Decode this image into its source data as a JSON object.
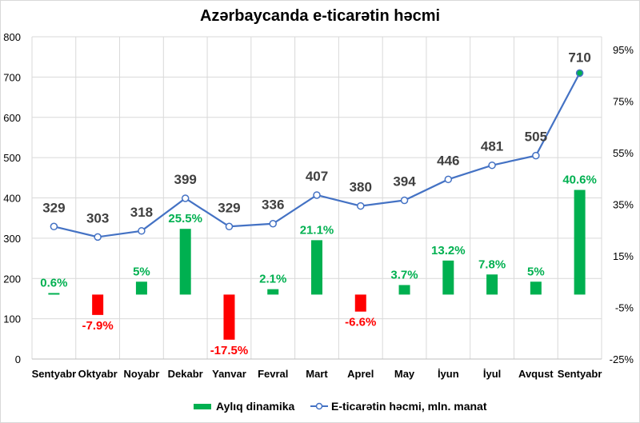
{
  "chart_data": {
    "type": "bar+line",
    "title": "Azərbaycanda e-ticarətin həcmi",
    "categories": [
      "Sentyabr",
      "Oktyabr",
      "Noyabr",
      "Dekabr",
      "Yanvar",
      "Fevral",
      "Mart",
      "Aprel",
      "May",
      "İyun",
      "İyul",
      "Avqust",
      "Sentyabr"
    ],
    "series": [
      {
        "name": "Aylıq dinamika",
        "type": "bar",
        "axis": "right",
        "values": [
          0.6,
          -7.9,
          5,
          25.5,
          -17.5,
          2.1,
          21.1,
          -6.6,
          3.7,
          13.2,
          7.8,
          5,
          40.6
        ],
        "labels": [
          "0.6%",
          "-7.9%",
          "5%",
          "25.5%",
          "-17.5%",
          "2.1%",
          "21.1%",
          "-6.6%",
          "3.7%",
          "13.2%",
          "7.8%",
          "5%",
          "40.6%"
        ]
      },
      {
        "name": "E-ticarətin həcmi, mln. manat",
        "type": "line",
        "axis": "left",
        "values": [
          329,
          303,
          318,
          399,
          329,
          336,
          407,
          380,
          394,
          446,
          481,
          505,
          710
        ]
      }
    ],
    "left_axis": {
      "range": [
        0,
        800
      ],
      "ticks": [
        "0",
        "100",
        "200",
        "300",
        "400",
        "500",
        "600",
        "700",
        "800"
      ]
    },
    "right_axis": {
      "range": [
        -25,
        100
      ],
      "ticks": [
        "-25%",
        "-5%",
        "15%",
        "35%",
        "55%",
        "75%",
        "95%"
      ]
    },
    "grid": true,
    "legend": "bottom",
    "colors": {
      "positive": "#00b050",
      "negative": "#ff0000",
      "line": "#4472c4",
      "last_marker": "#00b050"
    }
  }
}
